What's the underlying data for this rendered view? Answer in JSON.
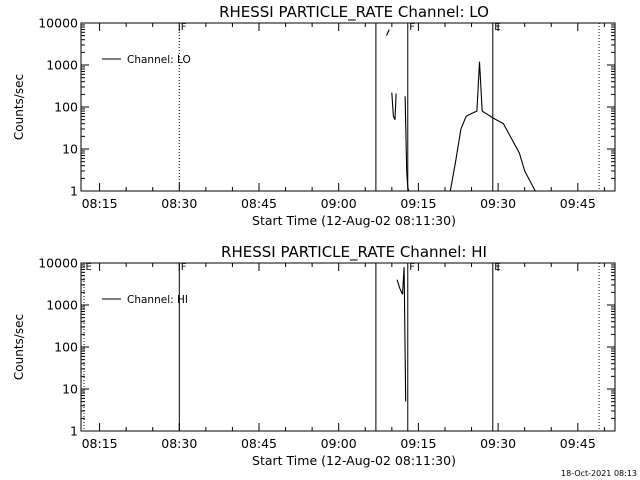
{
  "timestamp": "18-Oct-2021 08:13",
  "chart_data": [
    {
      "type": "line",
      "title": "RHESSI PARTICLE_RATE Channel: LO",
      "xlabel": "Start Time (12-Aug-02 08:11:30)",
      "ylabel": "Counts/sec",
      "y_scale": "log",
      "ylim": [
        1,
        10000
      ],
      "xlim": [
        "08:11:30",
        "09:52:00"
      ],
      "x_ticks": [
        "08:15",
        "08:30",
        "08:45",
        "09:00",
        "09:15",
        "09:30",
        "09:45"
      ],
      "y_ticks": [
        "1",
        "10",
        "100",
        "1000",
        "10000"
      ],
      "legend": {
        "label": "Channel: LO",
        "placement": "top-left"
      },
      "event_markers": [
        {
          "time": "08:30",
          "label": "F",
          "style": "dotted"
        },
        {
          "time": "09:07",
          "label": "",
          "style": "solid"
        },
        {
          "time": "09:13",
          "label": "F",
          "style": "solid"
        },
        {
          "time": "09:29",
          "label": "E",
          "style": "solid"
        },
        {
          "time": "09:49",
          "label": "",
          "style": "dotted"
        }
      ],
      "series": [
        {
          "name": "Channel: LO",
          "points": [
            [
              "09:09",
              5000
            ],
            [
              "09:09.5",
              7000
            ]
          ]
        },
        {
          "name": "Channel: LO",
          "points": [
            [
              "09:10",
              220
            ],
            [
              "09:10.3",
              60
            ],
            [
              "09:10.6",
              50
            ],
            [
              "09:10.8",
              210
            ]
          ]
        },
        {
          "name": "Channel: LO",
          "points": [
            [
              "09:12.5",
              180
            ],
            [
              "09:12.8",
              3
            ],
            [
              "09:13",
              1.2
            ],
            [
              "09:13.2",
              1
            ]
          ]
        },
        {
          "name": "Channel: LO",
          "points": [
            [
              "09:21",
              1
            ],
            [
              "09:22",
              5
            ],
            [
              "09:23",
              30
            ],
            [
              "09:24",
              60
            ],
            [
              "09:25",
              70
            ],
            [
              "09:26",
              80
            ],
            [
              "09:26.5",
              1200
            ],
            [
              "09:27",
              80
            ],
            [
              "09:29",
              55
            ],
            [
              "09:31",
              40
            ],
            [
              "09:34",
              8
            ],
            [
              "09:35",
              3
            ],
            [
              "09:37",
              1
            ]
          ]
        }
      ]
    },
    {
      "type": "line",
      "title": "RHESSI PARTICLE_RATE Channel: HI",
      "xlabel": "Start Time (12-Aug-02 08:11:30)",
      "ylabel": "Counts/sec",
      "y_scale": "log",
      "ylim": [
        1,
        10000
      ],
      "xlim": [
        "08:11:30",
        "09:52:00"
      ],
      "x_ticks": [
        "08:15",
        "08:30",
        "08:45",
        "09:00",
        "09:15",
        "09:30",
        "09:45"
      ],
      "y_ticks": [
        "1",
        "10",
        "100",
        "1000",
        "10000"
      ],
      "legend": {
        "label": "Channel: HI",
        "placement": "top-left"
      },
      "event_markers": [
        {
          "time": "08:11:30",
          "label": "E",
          "style": "dotted"
        },
        {
          "time": "08:30",
          "label": "F",
          "style": "solid"
        },
        {
          "time": "09:07",
          "label": "",
          "style": "solid"
        },
        {
          "time": "09:13",
          "label": "F",
          "style": "solid"
        },
        {
          "time": "09:29",
          "label": "E",
          "style": "solid"
        },
        {
          "time": "09:49",
          "label": "",
          "style": "dotted"
        }
      ],
      "series": [
        {
          "name": "Channel: HI",
          "points": [
            [
              "09:11",
              4000
            ],
            [
              "09:11.5",
              2500
            ],
            [
              "09:12",
              1800
            ],
            [
              "09:12.3",
              8000
            ],
            [
              "09:12.6",
              5
            ]
          ]
        }
      ]
    }
  ]
}
